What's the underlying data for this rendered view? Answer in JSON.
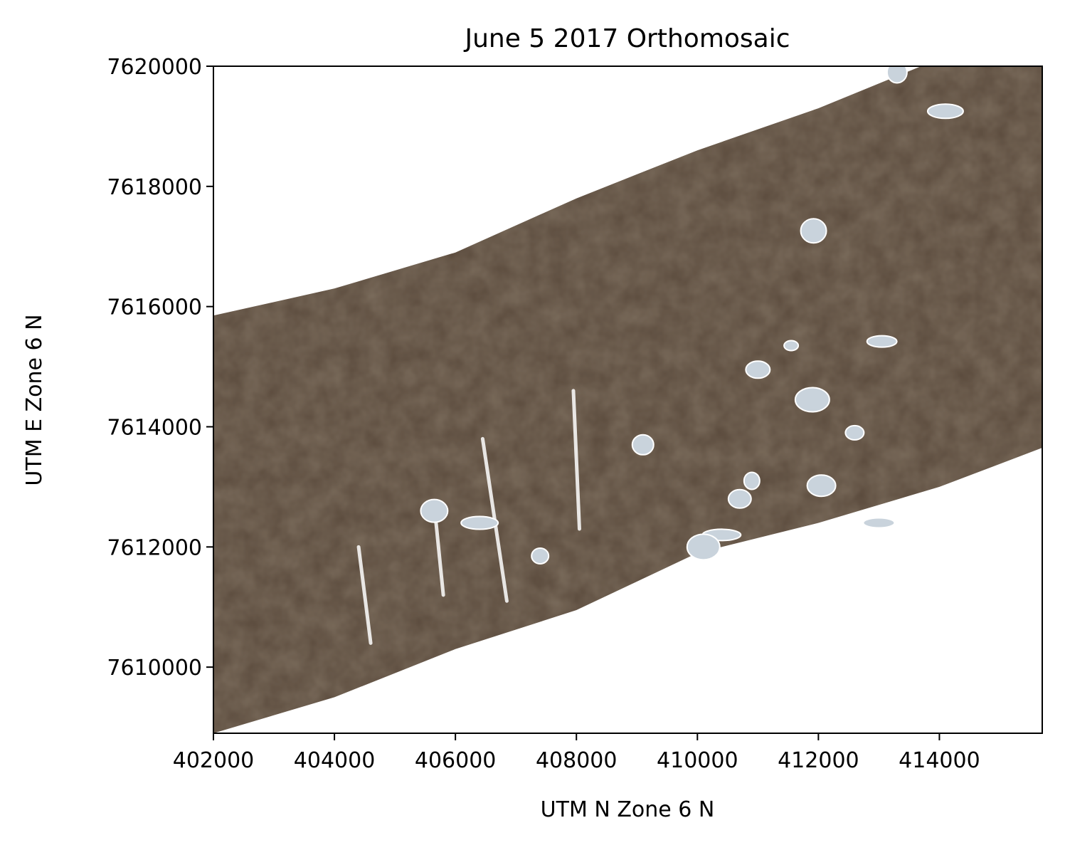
{
  "chart_data": {
    "type": "image",
    "title": "June 5 2017 Orthomosaic",
    "xlabel": "UTM N Zone 6 N",
    "ylabel": "UTM E Zone 6 N",
    "xlim": [
      402000,
      415700
    ],
    "ylim": [
      7608900,
      7620000
    ],
    "x_ticks": [
      402000,
      404000,
      406000,
      408000,
      410000,
      412000,
      414000
    ],
    "x_tick_labels": [
      "402000",
      "404000",
      "406000",
      "408000",
      "410000",
      "412000",
      "414000"
    ],
    "y_ticks": [
      7610000,
      7612000,
      7614000,
      7616000,
      7618000,
      7620000
    ],
    "y_tick_labels": [
      "7610000",
      "7612000",
      "7614000",
      "7616000",
      "7618000",
      "7620000"
    ],
    "mosaic_footprint": [
      [
        402000,
        7608900
      ],
      [
        402000,
        7615850
      ],
      [
        404000,
        7616300
      ],
      [
        406000,
        7616900
      ],
      [
        408000,
        7617800
      ],
      [
        410000,
        7618600
      ],
      [
        412000,
        7619300
      ],
      [
        413700,
        7620000
      ],
      [
        415700,
        7620000
      ],
      [
        415700,
        7613650
      ],
      [
        414000,
        7613000
      ],
      [
        412000,
        7612400
      ],
      [
        410000,
        7611900
      ],
      [
        408000,
        7610950
      ],
      [
        406000,
        7610300
      ],
      [
        404000,
        7609500
      ]
    ],
    "snow_patches": [
      [
        411550,
        7615350
      ],
      [
        411000,
        7614950
      ],
      [
        411900,
        7614450
      ],
      [
        412600,
        7613900
      ],
      [
        412050,
        7613020
      ],
      [
        410400,
        7612200
      ],
      [
        410700,
        7612800
      ],
      [
        410100,
        7612000
      ],
      [
        407400,
        7611850
      ],
      [
        405650,
        7612600
      ],
      [
        406400,
        7612400
      ],
      [
        409100,
        7613700
      ],
      [
        413000,
        7612400
      ],
      [
        410900,
        7613100
      ],
      [
        411920,
        7617260
      ],
      [
        414100,
        7619250
      ],
      [
        413300,
        7619900
      ],
      [
        413050,
        7615420
      ]
    ],
    "snow_streaks": [
      [
        [
          405650,
          7612700
        ],
        [
          405800,
          7611200
        ]
      ],
      [
        [
          406450,
          7613800
        ],
        [
          406850,
          7611100
        ]
      ],
      [
        [
          407950,
          7614600
        ],
        [
          408050,
          7612300
        ]
      ],
      [
        [
          404400,
          7612000
        ],
        [
          404600,
          7610400
        ]
      ]
    ],
    "colors": {
      "terrain": "#5a4a3c",
      "terrain_dark": "#46382c",
      "snow": "#ffffff",
      "ice": "#c9d3dc",
      "road": "#8e8d86"
    }
  }
}
